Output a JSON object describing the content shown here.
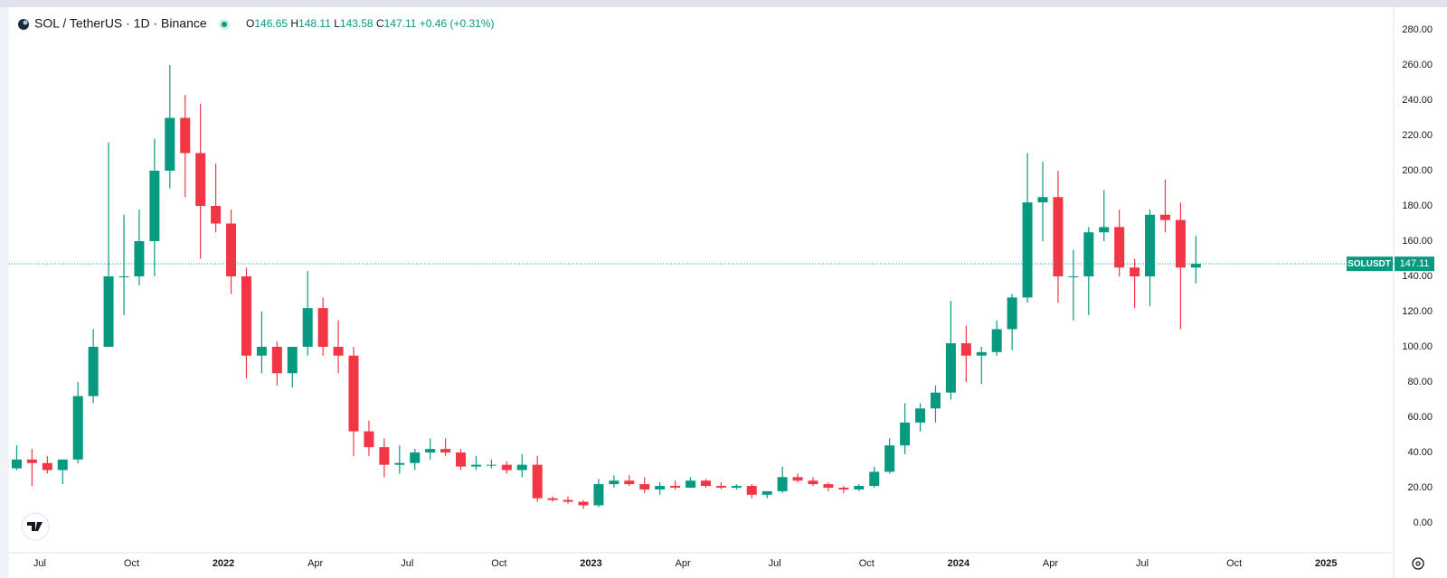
{
  "chart_data": {
    "type": "candlestick",
    "title": "SOL / TetherUS · 1D · Binance",
    "legend": {
      "open_label": "O",
      "open": 146.65,
      "high_label": "H",
      "high": 148.11,
      "low_label": "L",
      "low": 143.58,
      "close_label": "C",
      "close": 147.11,
      "change": "+0.46 (+0.31%)"
    },
    "price_line": {
      "symbol": "SOLUSDT",
      "value": 147.11
    },
    "up_color": "#089981",
    "down_color": "#f23645",
    "grid": true,
    "xlim": [
      0,
      90
    ],
    "xticks": [
      {
        "value": 2,
        "label": "Jul"
      },
      {
        "value": 8,
        "label": "Oct"
      },
      {
        "value": 14,
        "label": "2022"
      },
      {
        "value": 20,
        "label": "Apr"
      },
      {
        "value": 26,
        "label": "Jul"
      },
      {
        "value": 32,
        "label": "Oct"
      },
      {
        "value": 38,
        "label": "2023"
      },
      {
        "value": 44,
        "label": "Apr"
      },
      {
        "value": 50,
        "label": "Jul"
      },
      {
        "value": 56,
        "label": "Oct"
      },
      {
        "value": 62,
        "label": "2024"
      },
      {
        "value": 68,
        "label": "Apr"
      },
      {
        "value": 74,
        "label": "Jul"
      },
      {
        "value": 80,
        "label": "Oct"
      },
      {
        "value": 86,
        "label": "2025"
      }
    ],
    "ylim": [
      0,
      280
    ],
    "yticks": [
      {
        "value": 0,
        "label": "0.00"
      },
      {
        "value": 20,
        "label": "20.00"
      },
      {
        "value": 40,
        "label": "40.00"
      },
      {
        "value": 60,
        "label": "60.00"
      },
      {
        "value": 80,
        "label": "80.00"
      },
      {
        "value": 100,
        "label": "100.00"
      },
      {
        "value": 120,
        "label": "120.00"
      },
      {
        "value": 140,
        "label": "140.00"
      },
      {
        "value": 160,
        "label": "160.00"
      },
      {
        "value": 180,
        "label": "180.00"
      },
      {
        "value": 200,
        "label": "200.00"
      },
      {
        "value": 220,
        "label": "220.00"
      },
      {
        "value": 240,
        "label": "240.00"
      },
      {
        "value": 260,
        "label": "260.00"
      },
      {
        "value": 280,
        "label": "280.00"
      }
    ],
    "open": [
      31,
      36,
      34,
      30,
      36,
      72,
      100,
      140,
      140,
      160,
      200,
      230,
      210,
      180,
      170,
      140,
      95,
      100,
      85,
      100,
      122,
      100,
      95,
      52,
      43,
      33,
      34,
      40,
      42,
      40,
      32,
      33,
      33,
      30,
      33,
      14,
      13,
      12,
      10,
      22,
      24,
      22,
      19,
      21,
      20,
      24,
      21,
      20,
      21,
      16,
      18,
      26,
      24,
      22,
      20,
      19,
      21,
      29,
      44,
      57,
      65,
      74,
      102,
      95,
      97,
      110,
      128,
      182,
      185,
      140,
      140,
      165,
      168,
      145,
      140,
      175,
      172,
      145
    ],
    "high": [
      44,
      42,
      38,
      36,
      80,
      110,
      216,
      175,
      178,
      218,
      260,
      243,
      238,
      204,
      178,
      145,
      120,
      103,
      100,
      143,
      128,
      115,
      100,
      58,
      48,
      44,
      42,
      48,
      48,
      42,
      38,
      36,
      35,
      39,
      38,
      15,
      15,
      13,
      25,
      27,
      27,
      26,
      23,
      24,
      26,
      25,
      23,
      22,
      22,
      18,
      32,
      28,
      26,
      23,
      21,
      22,
      32,
      48,
      68,
      68,
      78,
      126,
      112,
      100,
      115,
      130,
      210,
      205,
      200,
      155,
      168,
      189,
      178,
      150,
      178,
      195,
      182,
      163
    ],
    "low": [
      30,
      21,
      28,
      22,
      34,
      68,
      100,
      118,
      135,
      140,
      190,
      185,
      150,
      165,
      130,
      82,
      85,
      78,
      77,
      95,
      95,
      85,
      38,
      38,
      26,
      28,
      30,
      36,
      38,
      30,
      30,
      31,
      28,
      26,
      12,
      12,
      11,
      8,
      9,
      20,
      21,
      17,
      16,
      19,
      20,
      20,
      19,
      19,
      14,
      14,
      17,
      23,
      21,
      18,
      17,
      18,
      20,
      28,
      39,
      52,
      57,
      70,
      80,
      79,
      95,
      98,
      125,
      160,
      125,
      115,
      118,
      160,
      140,
      122,
      123,
      165,
      110,
      136
    ],
    "close": [
      36,
      34,
      30,
      36,
      72,
      100,
      140,
      140,
      160,
      200,
      230,
      210,
      180,
      170,
      140,
      95,
      100,
      85,
      100,
      122,
      100,
      95,
      52,
      43,
      33,
      34,
      40,
      42,
      40,
      32,
      33,
      33,
      30,
      33,
      14,
      13,
      12,
      10,
      22,
      24,
      22,
      19,
      21,
      20,
      24,
      21,
      20,
      21,
      16,
      18,
      26,
      24,
      22,
      20,
      19,
      21,
      29,
      44,
      57,
      65,
      74,
      102,
      95,
      97,
      110,
      128,
      182,
      185,
      140,
      140,
      165,
      168,
      145,
      140,
      175,
      172,
      145,
      147.11
    ]
  }
}
